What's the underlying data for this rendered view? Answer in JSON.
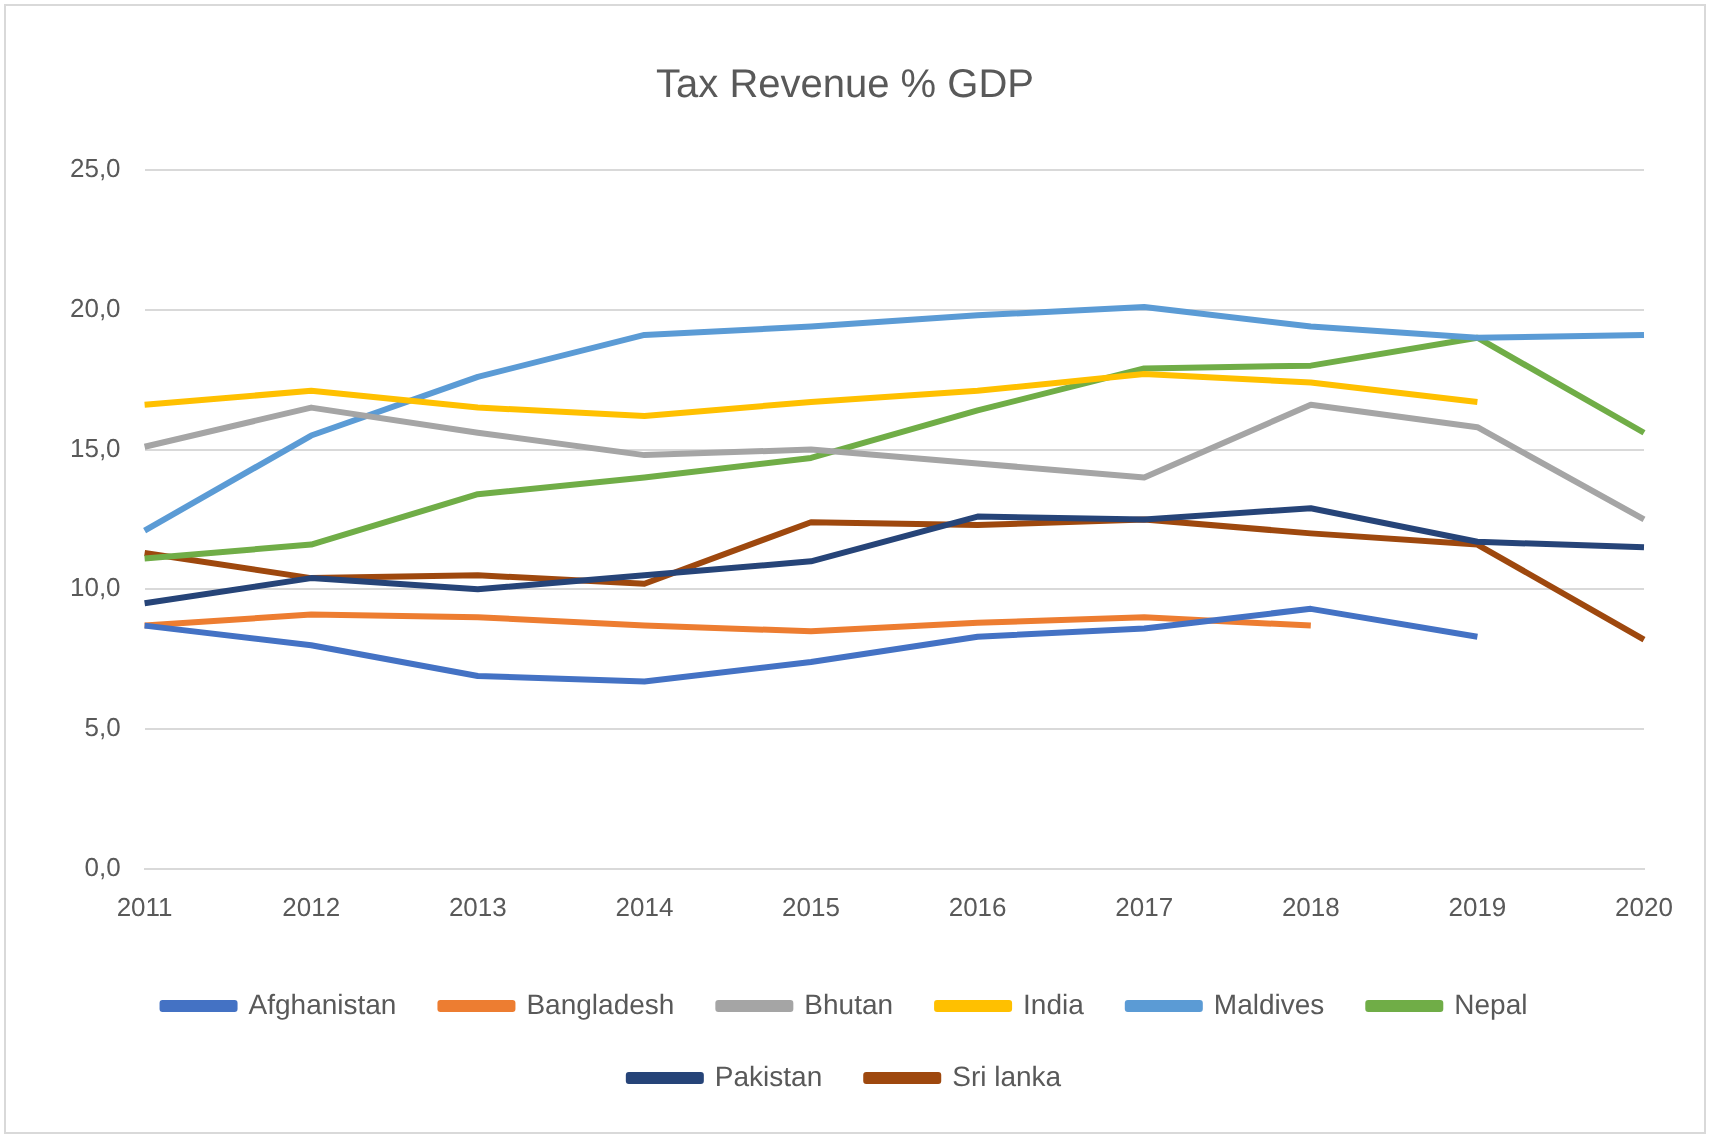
{
  "chart_data": {
    "type": "line",
    "title": "Tax Revenue % GDP",
    "categories": [
      "2011",
      "2012",
      "2013",
      "2014",
      "2015",
      "2016",
      "2017",
      "2018",
      "2019",
      "2020"
    ],
    "series": [
      {
        "name": "Afghanistan",
        "color": "#4472c4",
        "values": [
          8.7,
          8.0,
          6.9,
          6.7,
          7.4,
          8.3,
          8.6,
          9.3,
          8.3,
          null
        ]
      },
      {
        "name": "Bangladesh",
        "color": "#ed7d31",
        "values": [
          8.7,
          9.1,
          9.0,
          8.7,
          8.5,
          8.8,
          9.0,
          8.7,
          null,
          null
        ]
      },
      {
        "name": "Bhutan",
        "color": "#a5a5a5",
        "values": [
          15.1,
          16.5,
          15.6,
          14.8,
          15.0,
          14.5,
          14.0,
          16.6,
          15.8,
          12.5
        ]
      },
      {
        "name": "India",
        "color": "#ffc000",
        "values": [
          16.6,
          17.1,
          16.5,
          16.2,
          16.7,
          17.1,
          17.7,
          17.4,
          16.7,
          null
        ]
      },
      {
        "name": "Maldives",
        "color": "#5b9bd5",
        "values": [
          12.1,
          15.5,
          17.6,
          19.1,
          19.4,
          19.8,
          20.1,
          19.4,
          19.0,
          19.1
        ]
      },
      {
        "name": "Nepal",
        "color": "#70ad47",
        "values": [
          11.1,
          11.6,
          13.4,
          14.0,
          14.7,
          16.4,
          17.9,
          18.0,
          19.0,
          15.6
        ]
      },
      {
        "name": "Pakistan",
        "color": "#264478",
        "values": [
          9.5,
          10.4,
          10.0,
          10.5,
          11.0,
          12.6,
          12.5,
          12.9,
          11.7,
          11.5
        ]
      },
      {
        "name": "Sri lanka",
        "color": "#9e480e",
        "values": [
          11.3,
          10.4,
          10.5,
          10.2,
          12.4,
          12.3,
          12.5,
          12.0,
          11.6,
          8.2
        ]
      }
    ],
    "ylim": [
      0,
      25
    ],
    "yticks": [
      {
        "value": 0,
        "label": "0,0"
      },
      {
        "value": 5,
        "label": "5,0"
      },
      {
        "value": 10,
        "label": "10,0"
      },
      {
        "value": 15,
        "label": "15,0"
      },
      {
        "value": 20,
        "label": "20,0"
      },
      {
        "value": 25,
        "label": "25,0"
      }
    ],
    "grid": "y",
    "legend": "bottom",
    "marker": "none",
    "line_style": "solid"
  }
}
